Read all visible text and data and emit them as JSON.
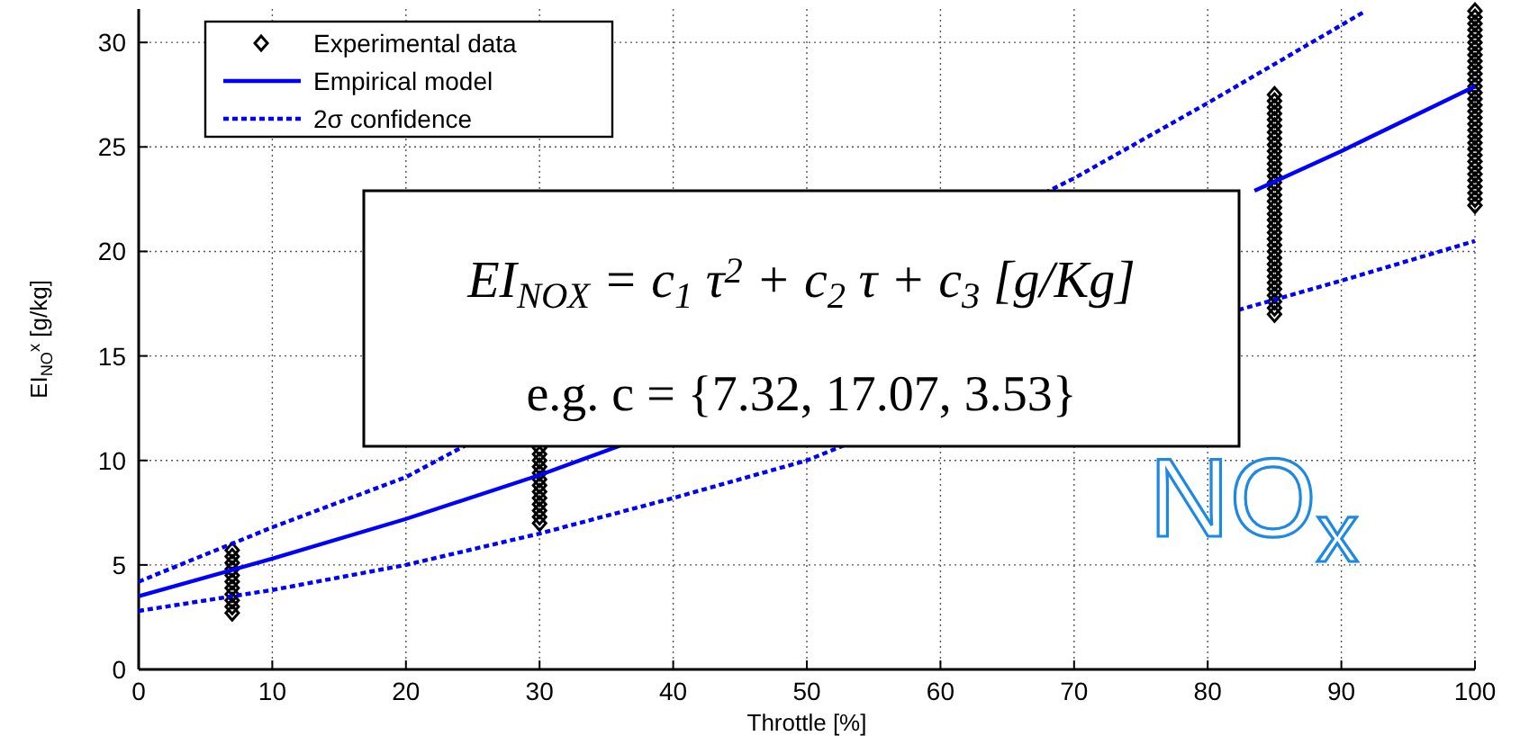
{
  "chart_data": {
    "type": "line",
    "xlabel": "Throttle [%]",
    "ylabel": "EI$_{NO}$$^{x}$ [g/kg]",
    "xlim": [
      0,
      100
    ],
    "xticks": [
      0,
      10,
      20,
      30,
      40,
      50,
      60,
      70,
      80,
      90,
      100
    ],
    "ylim": [
      0,
      31.6
    ],
    "yticks": [
      0,
      5,
      10,
      15,
      20,
      25,
      30
    ],
    "grid": true,
    "legend": "top left",
    "series": [
      {
        "name": "Experimental data",
        "type": "scatter",
        "color": "#000000",
        "marker": "diamond",
        "x": [
          7,
          7,
          7,
          7,
          7,
          7,
          7,
          7,
          7,
          7,
          7,
          30,
          30,
          30,
          30,
          30,
          30,
          30,
          30,
          30,
          30,
          30,
          30,
          30,
          85,
          85,
          85,
          85,
          85,
          85,
          85,
          85,
          85,
          85,
          85,
          85,
          85,
          85,
          85,
          85,
          85,
          85,
          85,
          85,
          85,
          85,
          85,
          85,
          85,
          85,
          85,
          85,
          85,
          85,
          85,
          85,
          85,
          85,
          85,
          85,
          100,
          100,
          100,
          100,
          100,
          100,
          100,
          100,
          100,
          100,
          100,
          100,
          100,
          100,
          100,
          100,
          100,
          100,
          100,
          100,
          100,
          100,
          100,
          100,
          100,
          100,
          100,
          100,
          100,
          100,
          100,
          100
        ],
        "values": [
          2.7,
          3.0,
          3.3,
          3.6,
          3.9,
          4.2,
          4.5,
          4.8,
          5.1,
          5.4,
          5.7,
          7.0,
          7.3,
          7.6,
          7.9,
          8.2,
          8.5,
          8.8,
          9.1,
          9.4,
          9.7,
          10.0,
          10.3,
          10.6,
          17.0,
          17.3,
          17.6,
          17.9,
          18.2,
          18.5,
          18.8,
          19.1,
          19.4,
          19.7,
          20.0,
          20.3,
          20.6,
          20.9,
          21.2,
          21.5,
          21.8,
          22.1,
          22.4,
          22.7,
          23.0,
          23.3,
          23.6,
          23.9,
          24.2,
          24.5,
          24.8,
          25.1,
          25.4,
          25.7,
          26.0,
          26.3,
          26.6,
          26.9,
          27.2,
          27.5,
          22.2,
          22.5,
          22.8,
          23.1,
          23.4,
          23.7,
          24.0,
          24.3,
          24.6,
          24.9,
          25.2,
          25.5,
          25.8,
          26.1,
          26.4,
          26.7,
          27.0,
          27.3,
          27.6,
          27.9,
          28.2,
          28.5,
          28.8,
          29.1,
          29.4,
          29.7,
          30.0,
          30.3,
          30.6,
          30.9,
          31.2,
          31.5
        ]
      },
      {
        "name": "Empirical model",
        "color": "#0000ff",
        "line_style": "solid",
        "x": [
          0,
          10,
          20,
          30,
          36,
          60,
          83.5,
          90,
          100
        ],
        "values": [
          3.5,
          5.3,
          7.2,
          9.3,
          10.7,
          null,
          22.9,
          24.8,
          27.9
        ]
      },
      {
        "name": "2σ confidence",
        "type": "line",
        "color": "#0000ff",
        "line_style": "dashed",
        "x": [
          0,
          10,
          20,
          24.4,
          50,
          67.8,
          70,
          80,
          91.8
        ],
        "values": [
          4.2,
          6.8,
          9.2,
          10.7,
          null,
          22.8,
          23.5,
          27.1,
          31.5
        ]
      },
      {
        "type": "line",
        "color": "#0000ff",
        "line_style": "dashed",
        "x": [
          0,
          10,
          20,
          30,
          40,
          50,
          52.7,
          70,
          82.3,
          90,
          100
        ],
        "values": [
          2.8,
          3.8,
          5.0,
          6.5,
          8.2,
          10.0,
          10.7,
          null,
          17.2,
          18.6,
          20.5
        ]
      }
    ],
    "annotations": [
      "EI$_{NOX}$ = c$_{1}$ τ$^{2}$ + c$_{2}$ τ + c$_{3}$ [g/Kg]",
      "e.g. c = {7.32,  17.07,  3.53}",
      "NO$_{x}$"
    ]
  }
}
